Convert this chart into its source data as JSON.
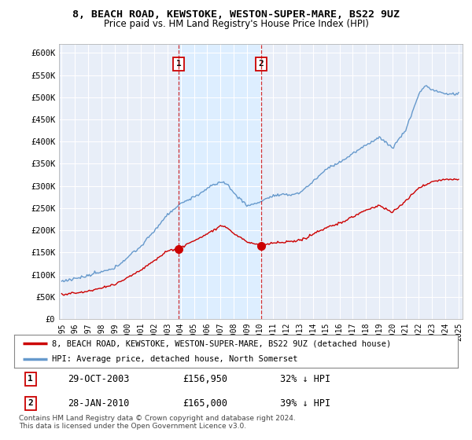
{
  "title": "8, BEACH ROAD, KEWSTOKE, WESTON-SUPER-MARE, BS22 9UZ",
  "subtitle": "Price paid vs. HM Land Registry's House Price Index (HPI)",
  "ylabel_ticks": [
    "£0",
    "£50K",
    "£100K",
    "£150K",
    "£200K",
    "£250K",
    "£300K",
    "£350K",
    "£400K",
    "£450K",
    "£500K",
    "£550K",
    "£600K"
  ],
  "ytick_values": [
    0,
    50000,
    100000,
    150000,
    200000,
    250000,
    300000,
    350000,
    400000,
    450000,
    500000,
    550000,
    600000
  ],
  "ylim": [
    0,
    620000
  ],
  "xlim_start": 1994.8,
  "xlim_end": 2025.3,
  "xtick_years": [
    1995,
    1996,
    1997,
    1998,
    1999,
    2000,
    2001,
    2002,
    2003,
    2004,
    2005,
    2006,
    2007,
    2008,
    2009,
    2010,
    2011,
    2012,
    2013,
    2014,
    2015,
    2016,
    2017,
    2018,
    2019,
    2020,
    2021,
    2022,
    2023,
    2024,
    2025
  ],
  "purchase1_x": 2003.83,
  "purchase1_y": 156950,
  "purchase2_x": 2010.07,
  "purchase2_y": 165000,
  "purchase_color": "#cc0000",
  "hpi_color": "#6699cc",
  "shade_color": "#ddeeff",
  "plot_bg": "#e8eef8",
  "fig_bg": "#ffffff",
  "legend_label_red": "8, BEACH ROAD, KEWSTOKE, WESTON-SUPER-MARE, BS22 9UZ (detached house)",
  "legend_label_blue": "HPI: Average price, detached house, North Somerset",
  "table_row1": [
    "1",
    "29-OCT-2003",
    "£156,950",
    "32% ↓ HPI"
  ],
  "table_row2": [
    "2",
    "28-JAN-2010",
    "£165,000",
    "39% ↓ HPI"
  ],
  "footer": "Contains HM Land Registry data © Crown copyright and database right 2024.\nThis data is licensed under the Open Government Licence v3.0."
}
